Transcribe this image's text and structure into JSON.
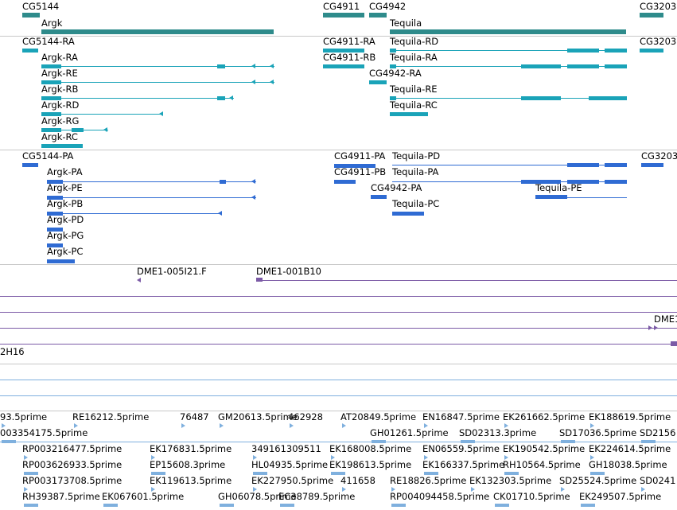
{
  "colors": {
    "gene": "#2e8b8b",
    "transcript": "#1aa3b8",
    "protein": "#2f6bd3",
    "clone": "#7b5aa6",
    "est": "#7fb0de",
    "separator": "#c8c8c8"
  },
  "gene_track": {
    "labels": [
      "CG5144",
      "Argk",
      "CG4911",
      "CG4942",
      "Tequila",
      "CG3203"
    ]
  },
  "transcript_track": {
    "labels": [
      "CG5144-RA",
      "Argk-RA",
      "Argk-RE",
      "Argk-RB",
      "Argk-RD",
      "Argk-RG",
      "Argk-RC",
      "CG4911-RA",
      "CG4911-RB",
      "CG4942-RA",
      "Tequila-RD",
      "Tequila-RA",
      "Tequila-RE",
      "Tequila-RC",
      "CG3203"
    ]
  },
  "protein_track": {
    "labels": [
      "CG5144-PA",
      "Argk-PA",
      "Argk-PE",
      "Argk-PB",
      "Argk-PD",
      "Argk-PG",
      "Argk-PC",
      "CG4911-PA",
      "CG4911-PB",
      "CG4942-PA",
      "Tequila-PD",
      "Tequila-PA",
      "Tequila-PE",
      "Tequila-PC",
      "CG3203"
    ]
  },
  "clone_track": {
    "labels": [
      "DME1-005I21.F",
      "DME1-001B10",
      "DME1",
      "2H16"
    ]
  },
  "est_track": {
    "rows": [
      [
        "93.5prime",
        "RE16212.5prime",
        "76487",
        "GM20613.5prime",
        "462928",
        "AT20849.5prime",
        "EN16847.5prime",
        "EK261662.5prime",
        "EK188619.5prime"
      ],
      [
        "003354175.5prime",
        "GH01261.5prime",
        "SD02313.3prime",
        "SD17036.5prime",
        "SD2156"
      ],
      [
        "RP003216477.5prime",
        "EK176831.5prime",
        "349161309511",
        "EK168008.5prime",
        "EN06559.5prime",
        "EK190542.5prime",
        "EK224614.5prime"
      ],
      [
        "RP003626933.5prime",
        "EP15608.3prime",
        "HL04935.5prime",
        "EK198613.5prime",
        "EK166337.5prime",
        "RH10564.5prime",
        "GH18038.5prime"
      ],
      [
        "RP003173708.5prime",
        "EK119613.5prime",
        "EK227950.5prime",
        "411658",
        "RE18826.5prime",
        "EK132303.5prime",
        "SD25524.5prime",
        "SD0241"
      ],
      [
        "RH39387.5prime",
        "EK067601.5prime",
        "GH06078.5prime",
        "EC38789.5prime",
        "RP004094458.5prime",
        "CK01710.5prime",
        "EK249507.5prime"
      ]
    ]
  }
}
